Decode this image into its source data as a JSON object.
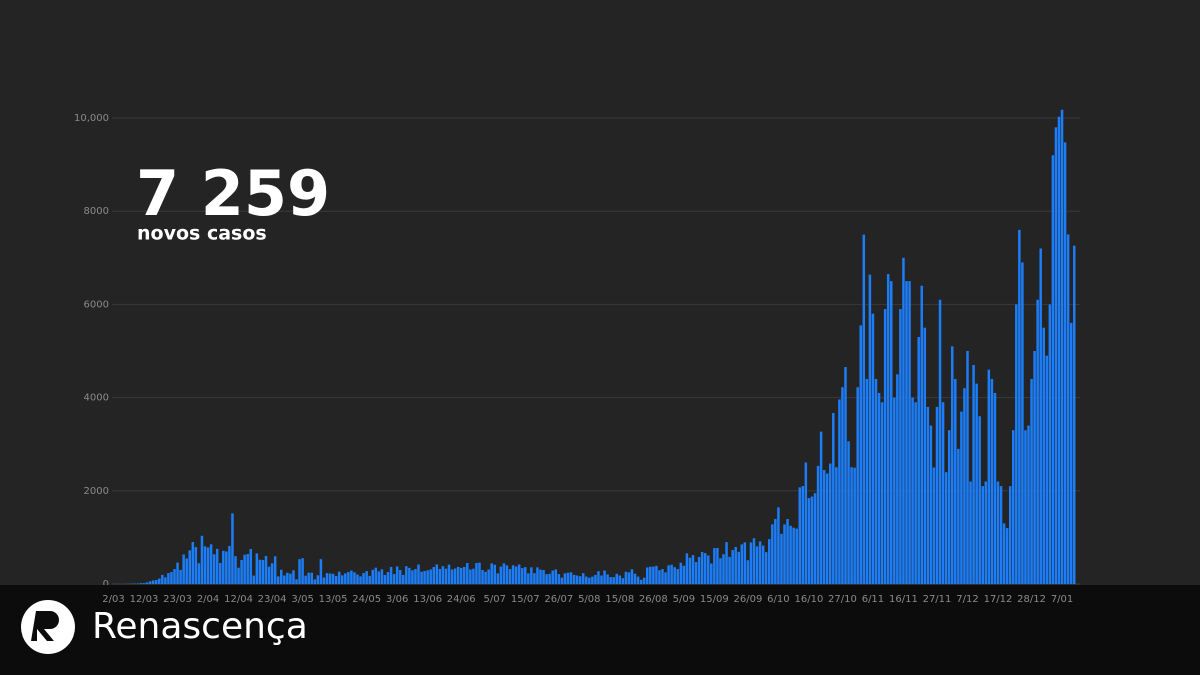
{
  "chart_data": {
    "type": "bar",
    "headline": "7 259",
    "subheadline": "novos casos",
    "color": "#1c7df6",
    "grid": true,
    "ylim": [
      0,
      10000
    ],
    "yticks": [
      0,
      2000,
      4000,
      6000,
      8000,
      {
        "value": 10000,
        "label": "10,000"
      }
    ],
    "categories": [
      "2/03",
      null,
      null,
      null,
      null,
      null,
      null,
      null,
      null,
      null,
      "12/03",
      null,
      null,
      null,
      null,
      null,
      null,
      null,
      null,
      null,
      null,
      "23/03",
      null,
      null,
      null,
      null,
      null,
      null,
      null,
      null,
      null,
      "2/04",
      null,
      null,
      null,
      null,
      null,
      null,
      null,
      null,
      null,
      "12/04",
      null,
      null,
      null,
      null,
      null,
      null,
      null,
      null,
      null,
      null,
      "23/04",
      null,
      null,
      null,
      null,
      null,
      null,
      null,
      null,
      null,
      "3/05",
      null,
      null,
      null,
      null,
      null,
      null,
      null,
      null,
      null,
      "13/05",
      null,
      null,
      null,
      null,
      null,
      null,
      null,
      null,
      null,
      null,
      "24/05",
      null,
      null,
      null,
      null,
      null,
      null,
      null,
      null,
      null,
      "3/06",
      null,
      null,
      null,
      null,
      null,
      null,
      null,
      null,
      null,
      "13/06",
      null,
      null,
      null,
      null,
      null,
      null,
      null,
      null,
      null,
      null,
      "24/06",
      null,
      null,
      null,
      null,
      null,
      null,
      null,
      null,
      null,
      null,
      "5/07",
      null,
      null,
      null,
      null,
      null,
      null,
      null,
      null,
      null,
      "15/07",
      null,
      null,
      null,
      null,
      null,
      null,
      null,
      null,
      null,
      null,
      "26/07",
      null,
      null,
      null,
      null,
      null,
      null,
      null,
      null,
      null,
      "5/08",
      null,
      null,
      null,
      null,
      null,
      null,
      null,
      null,
      null,
      "15/08",
      null,
      null,
      null,
      null,
      null,
      null,
      null,
      null,
      null,
      null,
      "26/08",
      null,
      null,
      null,
      null,
      null,
      null,
      null,
      null,
      null,
      "5/09",
      null,
      null,
      null,
      null,
      null,
      null,
      null,
      null,
      null,
      "15/09",
      null,
      null,
      null,
      null,
      null,
      null,
      null,
      null,
      null,
      null,
      "26/09",
      null,
      null,
      null,
      null,
      null,
      null,
      null,
      null,
      null,
      "6/10",
      null,
      null,
      null,
      null,
      null,
      null,
      null,
      null,
      null,
      "16/10",
      null,
      null,
      null,
      null,
      null,
      null,
      null,
      null,
      null,
      null,
      "27/10",
      null,
      null,
      null,
      null,
      null,
      null,
      null,
      null,
      null,
      "6/11",
      null,
      null,
      null,
      null,
      null,
      null,
      null,
      null,
      null,
      "16/11",
      null,
      null,
      null,
      null,
      null,
      null,
      null,
      null,
      null,
      null,
      "27/11",
      null,
      null,
      null,
      null,
      null,
      null,
      null,
      null,
      null,
      "7/12",
      null,
      null,
      null,
      null,
      null,
      null,
      null,
      null,
      null,
      "17/12",
      null,
      null,
      null,
      null,
      null,
      null,
      null,
      null,
      null,
      null,
      "28/12",
      null,
      null,
      null,
      null,
      null,
      null,
      null,
      null,
      null,
      "7/01",
      null,
      null,
      null,
      null
    ],
    "values": [
      2,
      0,
      2,
      1,
      4,
      4,
      9,
      9,
      11,
      18,
      19,
      34,
      57,
      76,
      86,
      117,
      194,
      143,
      235,
      260,
      320,
      460,
      302,
      633,
      549,
      724,
      902,
      792,
      446,
      1035,
      808,
      783,
      852,
      638,
      754,
      452,
      712,
      699,
      815,
      1516,
      598,
      349,
      514,
      629,
      643,
      750,
      181,
      657,
      521,
      516,
      603,
      371,
      444,
      595,
      163,
      306,
      183,
      241,
      223,
      295,
      100,
      533,
      553,
      178,
      242,
      242,
      98,
      187,
      533,
      138,
      234,
      226,
      219,
      173,
      264,
      186,
      227,
      257,
      288,
      252,
      203,
      163,
      235,
      277,
      175,
      304,
      350,
      271,
      315,
      193,
      257,
      366,
      213,
      377,
      300,
      195,
      382,
      346,
      294,
      321,
      418,
      264,
      279,
      294,
      312,
      365,
      420,
      323,
      382,
      329,
      417,
      311,
      332,
      367,
      345,
      367,
      451,
      311,
      328,
      451,
      458,
      300,
      263,
      312,
      443,
      413,
      229,
      374,
      443,
      400,
      321,
      402,
      375,
      418,
      342,
      361,
      229,
      358,
      232,
      357,
      310,
      300,
      210,
      219,
      288,
      313,
      214,
      136,
      229,
      241,
      252,
      196,
      183,
      167,
      233,
      160,
      135,
      158,
      195,
      274,
      182,
      290,
      206,
      148,
      148,
      219,
      183,
      125,
      263,
      251,
      316,
      221,
      159,
      90,
      136,
      355,
      372,
      374,
      391,
      296,
      321,
      250,
      401,
      413,
      361,
      320,
      457,
      392,
      658,
      564,
      620,
      470,
      579,
      687,
      665,
      613,
      441,
      770,
      773,
      552,
      638,
      898,
      582,
      728,
      794,
      691,
      851,
      895,
      510,
      892,
      982,
      807,
      915,
      825,
      684,
      963,
      1278,
      1394,
      1646,
      1077,
      1278,
      1394,
      1249,
      1209,
      1189,
      2072,
      2101,
      2608,
      1844,
      1876,
      1949,
      2535,
      3270,
      2447,
      2371,
      2585,
      3669,
      2506,
      3960,
      4224,
      4656,
      3062,
      2506,
      2496,
      4224,
      5551,
      7497,
      4400,
      6640,
      5800,
      4400,
      4100,
      3900,
      5900,
      6650,
      6500,
      4000,
      4500,
      5900,
      7000,
      6500,
      6500,
      4000,
      3900,
      5300,
      6400,
      5500,
      3800,
      3400,
      2500,
      3800,
      6100,
      3900,
      2400,
      3300,
      5100,
      4400,
      2900,
      3700,
      4200,
      5000,
      2200,
      4700,
      4300,
      3600,
      2100,
      2200,
      4600,
      4400,
      4100,
      2200,
      2100,
      1300,
      1200,
      2100,
      3300,
      6000,
      7600,
      6900,
      3300,
      3400,
      4400,
      5000,
      6100,
      7200,
      5500,
      4900,
      6000,
      9200,
      9800,
      10027,
      10176,
      9478,
      7502,
      5604,
      7259
    ]
  },
  "footer": {
    "brand": "Renascença"
  }
}
